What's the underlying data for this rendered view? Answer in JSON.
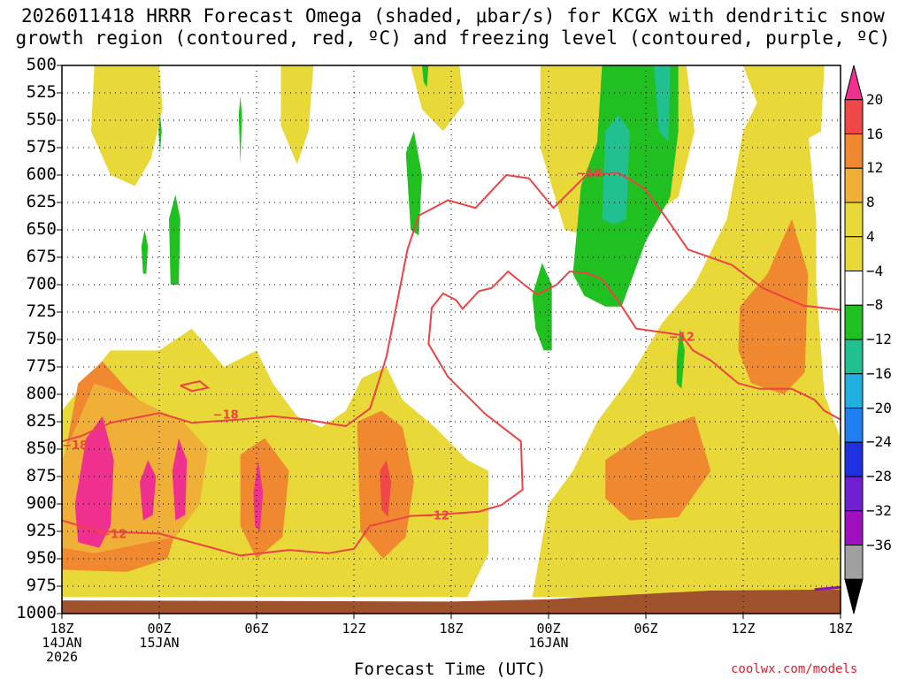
{
  "title": {
    "line1": "2026011418 HRRR Forecast Omega (shaded, μbar/s) for KCGX with dendritic snow",
    "line2": "growth region (contoured, red, ºC) and freezing level (contoured, purple, ºC)"
  },
  "chart_data": {
    "type": "heatmap",
    "title": "2026011418 HRRR Forecast Omega (shaded, μbar/s) for KCGX with dendritic snow growth region (contoured, red, ºC) and freezing level (contoured, purple, ºC)",
    "xlabel": "Forecast Time (UTC)",
    "ylabel": "",
    "x_range_hours": [
      0,
      48
    ],
    "x_ticks": [
      {
        "hour": 0,
        "label": "18Z",
        "sub": [
          "14JAN",
          "2026"
        ]
      },
      {
        "hour": 6,
        "label": "00Z",
        "sub": [
          "15JAN"
        ]
      },
      {
        "hour": 12,
        "label": "06Z",
        "sub": []
      },
      {
        "hour": 18,
        "label": "12Z",
        "sub": []
      },
      {
        "hour": 24,
        "label": "18Z",
        "sub": []
      },
      {
        "hour": 30,
        "label": "00Z",
        "sub": [
          "16JAN"
        ]
      },
      {
        "hour": 36,
        "label": "06Z",
        "sub": []
      },
      {
        "hour": 42,
        "label": "12Z",
        "sub": []
      },
      {
        "hour": 48,
        "label": "18Z",
        "sub": []
      }
    ],
    "y_ticks": [
      500,
      525,
      550,
      575,
      600,
      625,
      650,
      675,
      700,
      725,
      750,
      775,
      800,
      825,
      850,
      875,
      900,
      925,
      950,
      975,
      1000
    ],
    "y_range_mb": [
      500,
      1000
    ],
    "grid": "dotted",
    "colorbar": {
      "levels": [
        "20",
        "16",
        "12",
        "8",
        "4",
        "−4",
        "−8",
        "−12",
        "−16",
        "−20",
        "−24",
        "−28",
        "−32",
        "−36"
      ],
      "fills": [
        "#f0308f",
        "#f04848",
        "#f08830",
        "#f0b038",
        "#e8d838",
        "#e8d838",
        "#ffffff",
        "#20c020",
        "#20c090",
        "#20b0e0",
        "#1f7ff0",
        "#1f30e0",
        "#7020d0",
        "#a010c0",
        "#a0a0a0",
        "#000000"
      ]
    },
    "contours": [
      {
        "name": "dgz_-18",
        "label": "−18",
        "color": "#ec4444",
        "points": [
          [
            0,
            843
          ],
          [
            1.2,
            838
          ],
          [
            3,
            826
          ],
          [
            6,
            817
          ],
          [
            8,
            826
          ],
          [
            11,
            823
          ],
          [
            13,
            820
          ],
          [
            15,
            823
          ],
          [
            17.5,
            829
          ],
          [
            19,
            813
          ],
          [
            20,
            766
          ],
          [
            21.3,
            668
          ],
          [
            22,
            637
          ],
          [
            23.8,
            623
          ],
          [
            25.5,
            630
          ],
          [
            27.4,
            600
          ],
          [
            28.8,
            603
          ],
          [
            30.3,
            630
          ],
          [
            32.4,
            599
          ],
          [
            34.3,
            598
          ],
          [
            35.9,
            612
          ],
          [
            37.3,
            640
          ],
          [
            38.6,
            668
          ],
          [
            41.3,
            682
          ],
          [
            43.2,
            703
          ],
          [
            45.7,
            719
          ],
          [
            48,
            723
          ]
        ]
      },
      {
        "name": "dgz_-12",
        "label": "−12",
        "color": "#ec4444",
        "points": [
          [
            0,
            915
          ],
          [
            2.2,
            925
          ],
          [
            4,
            926
          ],
          [
            6,
            927
          ],
          [
            8,
            935
          ],
          [
            11,
            947
          ],
          [
            14,
            942
          ],
          [
            16.4,
            945
          ],
          [
            18,
            941
          ],
          [
            19,
            920
          ],
          [
            21.5,
            911
          ],
          [
            23,
            910
          ],
          [
            25.7,
            907
          ],
          [
            27.1,
            901
          ],
          [
            28.4,
            887
          ],
          [
            28.3,
            843
          ],
          [
            26.1,
            818
          ],
          [
            23.8,
            784
          ],
          [
            22.6,
            754
          ],
          [
            22.8,
            721
          ],
          [
            23.5,
            708
          ],
          [
            24.3,
            714
          ],
          [
            24.7,
            722
          ],
          [
            25.7,
            706
          ],
          [
            26.5,
            703
          ],
          [
            27.5,
            688
          ],
          [
            28.5,
            700
          ],
          [
            29.3,
            709
          ],
          [
            30.5,
            700
          ],
          [
            31.3,
            688
          ],
          [
            32.3,
            689
          ],
          [
            33.3,
            695
          ],
          [
            34.3,
            715
          ],
          [
            35.4,
            740
          ],
          [
            38.2,
            746
          ],
          [
            38.9,
            760
          ],
          [
            40,
            769
          ],
          [
            41.7,
            790
          ],
          [
            43,
            795
          ],
          [
            45,
            795
          ],
          [
            46.4,
            805
          ],
          [
            47,
            815
          ],
          [
            48,
            823
          ]
        ]
      },
      {
        "name": "blob_-18",
        "label": "",
        "color": "#ec4444",
        "points": [
          [
            7.3,
            792
          ],
          [
            8.5,
            788
          ],
          [
            9,
            794
          ],
          [
            8,
            797
          ],
          [
            7.3,
            792
          ]
        ]
      }
    ],
    "terrain_mb": [
      [
        0,
        988
      ],
      [
        24,
        989
      ],
      [
        30,
        987
      ],
      [
        36,
        982
      ],
      [
        40,
        979
      ],
      [
        48,
        978
      ]
    ],
    "freezing_level_C": [
      [
        46.4,
        978
      ],
      [
        48,
        976
      ]
    ]
  },
  "footer": {
    "x_title": "Forecast Time (UTC)",
    "credit": "coolwx.com/models"
  }
}
